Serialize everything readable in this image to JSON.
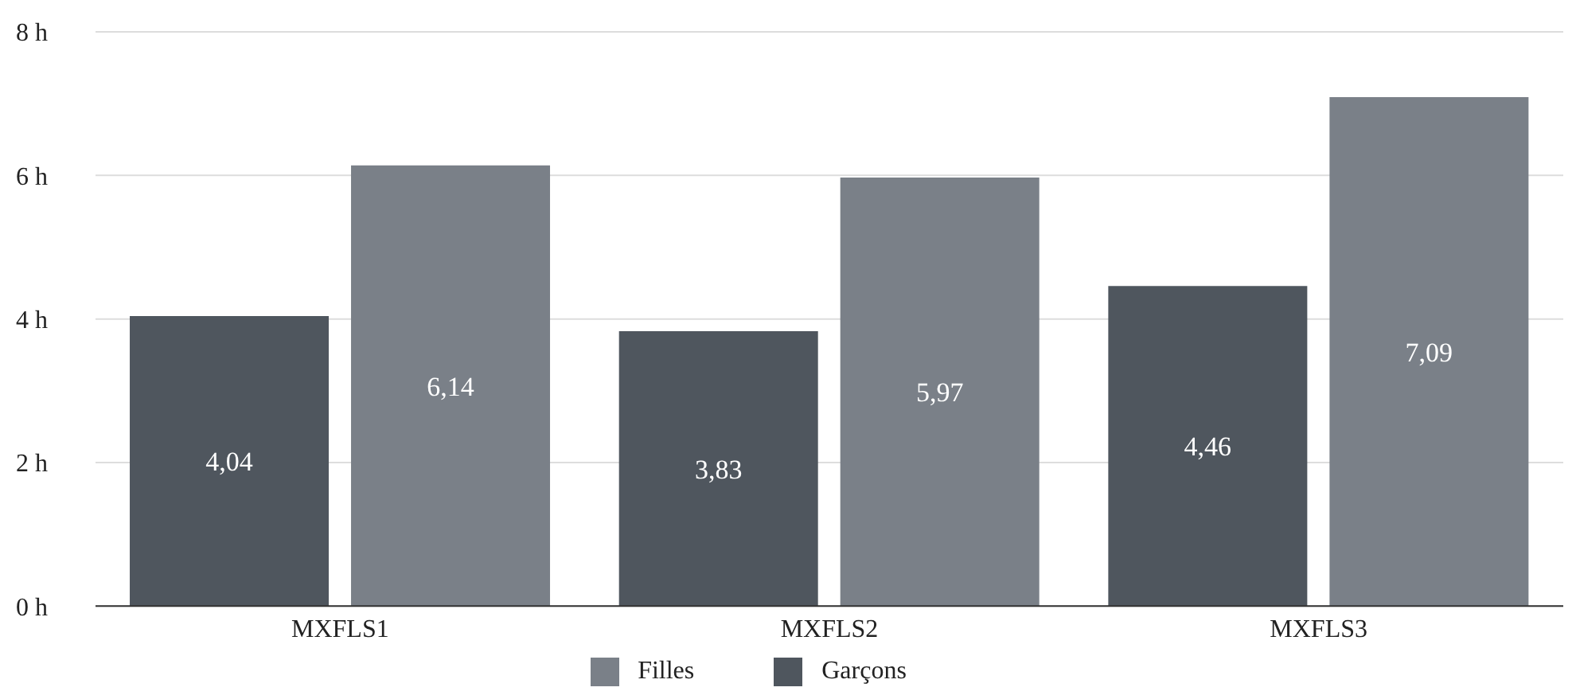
{
  "chart_data": {
    "type": "bar",
    "categories": [
      "MXFLS1",
      "MXFLS2",
      "MXFLS3"
    ],
    "series": [
      {
        "name": "Garçons",
        "color": "#4f565e",
        "values": [
          4.04,
          3.83,
          4.46
        ],
        "value_labels": [
          "4,04",
          "3,83",
          "4,46"
        ]
      },
      {
        "name": "Filles",
        "color": "#7a8088",
        "values": [
          6.14,
          5.97,
          7.09
        ],
        "value_labels": [
          "6,14",
          "5,97",
          "7,09"
        ]
      }
    ],
    "ylim": [
      0,
      8
    ],
    "yticks": [
      {
        "value": 0,
        "label": "0 h"
      },
      {
        "value": 2,
        "label": "2 h"
      },
      {
        "value": 4,
        "label": "4 h"
      },
      {
        "value": 6,
        "label": "6 h"
      },
      {
        "value": 8,
        "label": "8 h"
      }
    ],
    "grid": "y",
    "legend": "bottom"
  }
}
